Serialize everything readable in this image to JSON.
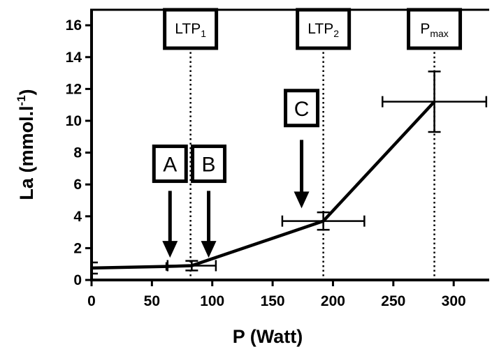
{
  "chart_data": {
    "type": "line",
    "xlabel": "P (Watt)",
    "ylabel_main": "La (mmol.l",
    "ylabel_sup": "-1",
    "ylabel_tail": ")",
    "xlim": [
      0,
      330
    ],
    "ylim": [
      0,
      17
    ],
    "xticks": [
      0,
      50,
      100,
      150,
      200,
      250,
      300
    ],
    "yticks": [
      0,
      2,
      4,
      6,
      8,
      10,
      12,
      14,
      16
    ],
    "grid": false,
    "series": [
      {
        "points": [
          {
            "x": 0,
            "y": 0.75,
            "xerr": 0,
            "yerr": 0.35
          },
          {
            "x": 62,
            "y": 0.85,
            "xerr": 0,
            "yerr": 0
          },
          {
            "x": 83,
            "y": 0.9,
            "xerr": 20,
            "yerr": 0.3
          },
          {
            "x": 192,
            "y": 3.7,
            "xerr": 34,
            "yerr": 0.55
          },
          {
            "x": 284,
            "y": 11.2,
            "xerr": 43,
            "yerr": 1.9
          }
        ]
      }
    ],
    "thresholds": [
      {
        "x": 82,
        "label": "LTP",
        "sub": "1"
      },
      {
        "x": 192,
        "label": "LTP",
        "sub": "2"
      },
      {
        "x": 284,
        "label": "P",
        "sub": "max"
      }
    ],
    "annotations": [
      {
        "label": "A",
        "x": 65,
        "y_tip": 1.4,
        "y_tail": 5.6,
        "box_y": 7.3
      },
      {
        "label": "B",
        "x": 97,
        "y_tip": 1.4,
        "y_tail": 5.6,
        "box_y": 7.3
      },
      {
        "label": "C",
        "x": 174,
        "y_tip": 4.5,
        "y_tail": 8.8,
        "box_y": 10.8
      }
    ]
  }
}
